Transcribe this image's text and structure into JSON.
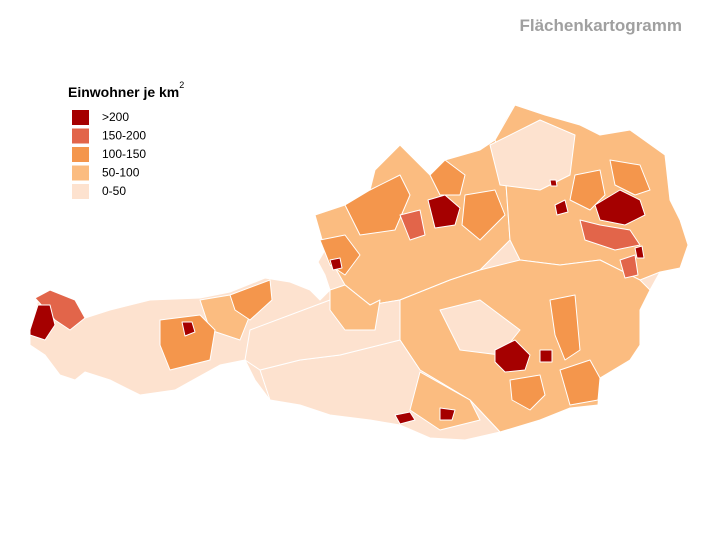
{
  "title": "Flächenkartogramm",
  "legend": {
    "title": "Einwohner je km",
    "title_superscript": "2",
    "items": [
      {
        "label": ">200",
        "color": "#a50000"
      },
      {
        "label": "150-200",
        "color": "#e2654a"
      },
      {
        "label": "100-150",
        "color": "#f4964c"
      },
      {
        "label": "50-100",
        "color": "#fbbc80"
      },
      {
        "label": "0-50",
        "color": "#fde2cf"
      }
    ]
  }
}
